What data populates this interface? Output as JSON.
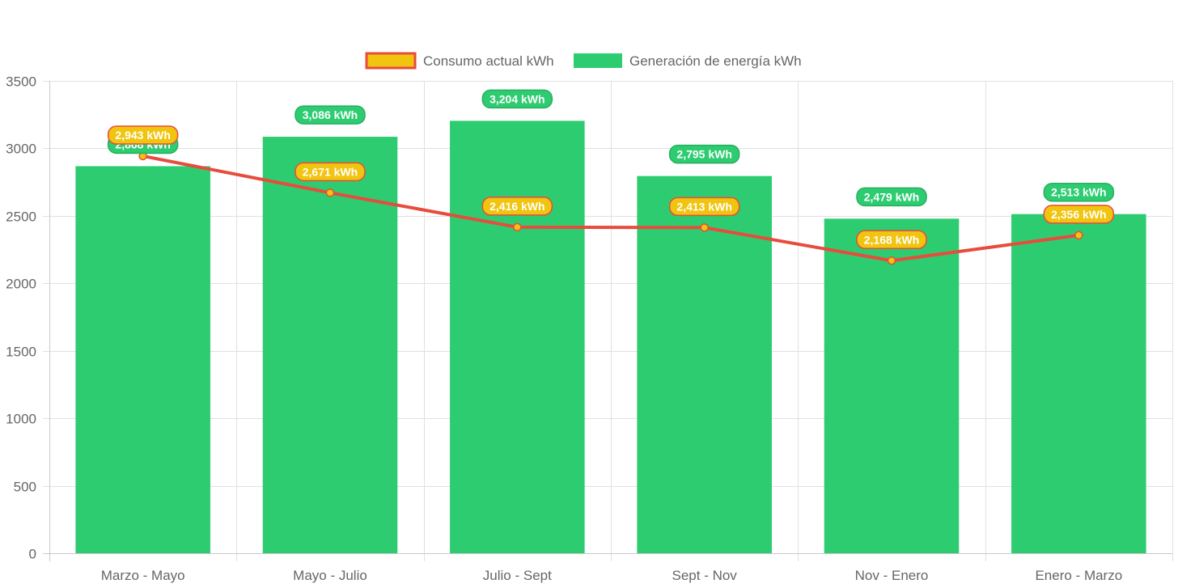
{
  "chart_data": {
    "type": "bar",
    "categories": [
      "Marzo - Mayo",
      "Mayo - Julio",
      "Julio - Sept",
      "Sept - Nov",
      "Nov - Enero",
      "Enero - Marzo"
    ],
    "series": [
      {
        "name": "Generación de energía kWh",
        "type": "bar",
        "values": [
          2868,
          3086,
          3204,
          2795,
          2479,
          2513
        ],
        "labels": [
          "2,868 kWh",
          "3,086 kWh",
          "3,204 kWh",
          "2,795 kWh",
          "2,479 kWh",
          "2,513 kWh"
        ],
        "color": "#2ecc71",
        "label_border": "#27ae60"
      },
      {
        "name": "Consumo actual kWh",
        "type": "line",
        "values": [
          2943,
          2671,
          2416,
          2413,
          2168,
          2356
        ],
        "labels": [
          "2,943 kWh",
          "2,671 kWh",
          "2,416 kWh",
          "2,413 kWh",
          "2,168 kWh",
          "2,356 kWh"
        ],
        "color": "#e74c3c",
        "fill": "#f1c40f"
      }
    ],
    "ylim": [
      0,
      3500
    ],
    "yticks": [
      0,
      500,
      1000,
      1500,
      2000,
      2500,
      3000,
      3500
    ],
    "title": "",
    "xlabel": "",
    "ylabel": "",
    "grid": true,
    "legend_position": "top-center"
  }
}
